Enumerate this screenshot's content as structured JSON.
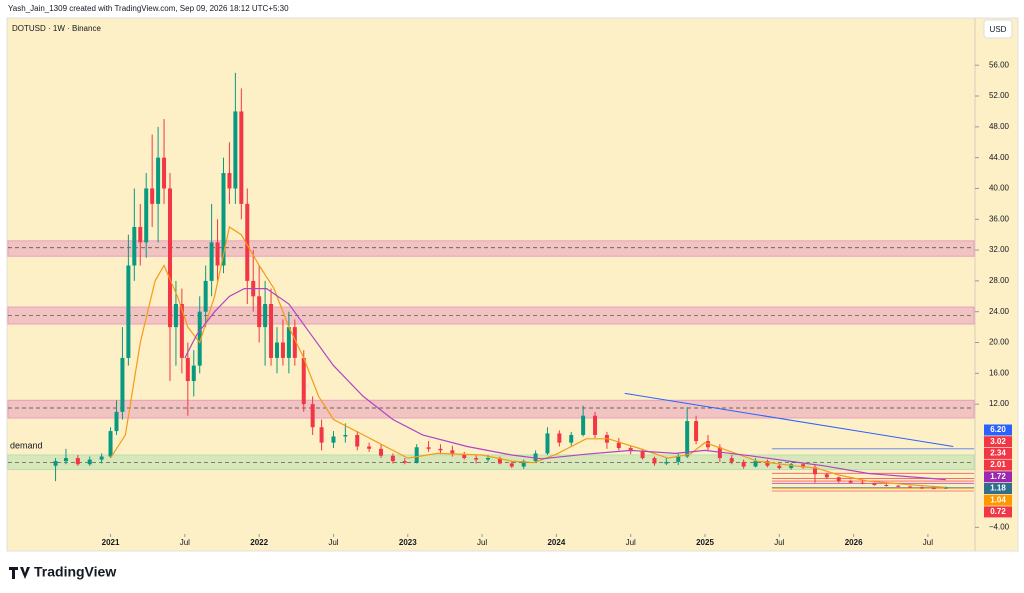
{
  "chart_data": {
    "type": "candlestick",
    "credit": "Yash_Jain_1309 created with TradingView.com, Sep 09, 2026 18:12 UTC+5:30",
    "title": "DOTUSD · 1W · Binance",
    "currency": "USD",
    "brand": "TradingView",
    "up_color": "#089981",
    "down_color": "#f23645",
    "xlim": [
      2020.31,
      2026.81
    ],
    "ylim": [
      -4.6,
      62
    ],
    "xticks": [
      {
        "value": 2021,
        "label": "2021"
      },
      {
        "value": 2021.5,
        "label": "Jul"
      },
      {
        "value": 2022,
        "label": "2022"
      },
      {
        "value": 2022.5,
        "label": "Jul"
      },
      {
        "value": 2023,
        "label": "2023"
      },
      {
        "value": 2023.5,
        "label": "Jul"
      },
      {
        "value": 2024,
        "label": "2024"
      },
      {
        "value": 2024.5,
        "label": "Jul"
      },
      {
        "value": 2025,
        "label": "2025"
      },
      {
        "value": 2025.5,
        "label": "Jul"
      },
      {
        "value": 2026,
        "label": "2026"
      },
      {
        "value": 2026.5,
        "label": "Jul"
      }
    ],
    "yticks": [
      {
        "value": 56,
        "label": "56.00"
      },
      {
        "value": 52,
        "label": "52.00"
      },
      {
        "value": 48,
        "label": "48.00"
      },
      {
        "value": 44,
        "label": "44.00"
      },
      {
        "value": 40,
        "label": "40.00"
      },
      {
        "value": 36,
        "label": "36.00"
      },
      {
        "value": 32,
        "label": "32.00"
      },
      {
        "value": 28,
        "label": "28.00"
      },
      {
        "value": 24,
        "label": "24.00"
      },
      {
        "value": 20,
        "label": "20.00"
      },
      {
        "value": 16,
        "label": "16.00"
      },
      {
        "value": 12,
        "label": "12.00"
      },
      {
        "value": -4,
        "label": "−4.00"
      }
    ],
    "candles": [
      [
        2020.63,
        4.0,
        5.0,
        2.0,
        4.6
      ],
      [
        2020.7,
        4.6,
        6.2,
        4.2,
        5.0
      ],
      [
        2020.78,
        5.0,
        5.4,
        4.0,
        4.2
      ],
      [
        2020.86,
        4.2,
        5.2,
        4.0,
        4.8
      ],
      [
        2020.94,
        4.8,
        5.6,
        4.3,
        5.2
      ],
      [
        2021.0,
        5.2,
        9.0,
        5.0,
        8.5
      ],
      [
        2021.04,
        8.5,
        12.5,
        8.0,
        11.0
      ],
      [
        2021.08,
        11.0,
        22,
        10,
        18
      ],
      [
        2021.12,
        18,
        34,
        17,
        30
      ],
      [
        2021.16,
        30,
        40,
        28,
        35
      ],
      [
        2021.2,
        35,
        38,
        30,
        33
      ],
      [
        2021.24,
        33,
        42,
        31,
        40
      ],
      [
        2021.28,
        40,
        47,
        35,
        38
      ],
      [
        2021.32,
        38,
        48,
        33,
        44
      ],
      [
        2021.36,
        44,
        49,
        38,
        40
      ],
      [
        2021.4,
        40,
        42,
        15,
        22
      ],
      [
        2021.44,
        22,
        28,
        17,
        25
      ],
      [
        2021.48,
        25,
        27,
        16,
        18
      ],
      [
        2021.52,
        18,
        20,
        10.5,
        15
      ],
      [
        2021.56,
        15,
        19,
        13,
        17
      ],
      [
        2021.6,
        17,
        26,
        16,
        24
      ],
      [
        2021.64,
        24,
        30,
        22,
        28
      ],
      [
        2021.68,
        28,
        38,
        26,
        33
      ],
      [
        2021.72,
        33,
        36,
        28,
        30
      ],
      [
        2021.76,
        30,
        44,
        29,
        42
      ],
      [
        2021.8,
        42,
        46,
        38,
        40
      ],
      [
        2021.84,
        40,
        55,
        38,
        50
      ],
      [
        2021.88,
        50,
        53,
        36,
        38
      ],
      [
        2021.92,
        38,
        40,
        25,
        28
      ],
      [
        2021.96,
        28,
        32,
        24,
        26
      ],
      [
        2022.0,
        26,
        30,
        20,
        22
      ],
      [
        2022.04,
        22,
        28,
        17,
        25
      ],
      [
        2022.08,
        25,
        27,
        17,
        18
      ],
      [
        2022.12,
        18,
        22,
        16,
        20
      ],
      [
        2022.16,
        20,
        23,
        17,
        18
      ],
      [
        2022.2,
        18,
        24,
        16,
        22
      ],
      [
        2022.24,
        22,
        23,
        17,
        18
      ],
      [
        2022.3,
        18,
        19,
        11,
        12
      ],
      [
        2022.36,
        12,
        13,
        8,
        9
      ],
      [
        2022.42,
        9,
        10,
        6,
        7
      ],
      [
        2022.5,
        7,
        8.5,
        6.3,
        7.8
      ],
      [
        2022.58,
        7.8,
        9.5,
        7,
        8
      ],
      [
        2022.66,
        8,
        8.5,
        6,
        6.5
      ],
      [
        2022.74,
        6.5,
        7,
        5.8,
        6.2
      ],
      [
        2022.82,
        6.2,
        6.8,
        5,
        5.3
      ],
      [
        2022.9,
        5.3,
        5.6,
        4.3,
        4.6
      ],
      [
        2022.98,
        4.6,
        5,
        4.2,
        4.4
      ],
      [
        2023.06,
        4.4,
        6.8,
        4.3,
        6.4
      ],
      [
        2023.14,
        6.4,
        7.2,
        5.8,
        6.2
      ],
      [
        2023.22,
        6.2,
        6.8,
        5.5,
        6.0
      ],
      [
        2023.3,
        6.0,
        6.6,
        5.2,
        5.5
      ],
      [
        2023.38,
        5.5,
        5.8,
        4.8,
        5.0
      ],
      [
        2023.46,
        5.0,
        5.4,
        4.3,
        4.8
      ],
      [
        2023.54,
        4.8,
        5.4,
        4.5,
        5.0
      ],
      [
        2023.62,
        5.0,
        5.2,
        4.2,
        4.3
      ],
      [
        2023.7,
        4.3,
        4.6,
        3.7,
        3.9
      ],
      [
        2023.78,
        3.9,
        4.8,
        3.6,
        4.6
      ],
      [
        2023.86,
        4.6,
        6.0,
        4.4,
        5.6
      ],
      [
        2023.94,
        5.6,
        9.0,
        5.4,
        8.2
      ],
      [
        2024.02,
        8.2,
        8.6,
        6.5,
        7.0
      ],
      [
        2024.1,
        7.0,
        8.4,
        6.6,
        8.0
      ],
      [
        2024.18,
        8.0,
        11.8,
        7.8,
        10.5
      ],
      [
        2024.26,
        10.5,
        11.0,
        7.6,
        8.0
      ],
      [
        2024.34,
        8.0,
        8.4,
        6.2,
        7.0
      ],
      [
        2024.42,
        7.0,
        7.6,
        6.0,
        6.3
      ],
      [
        2024.5,
        6.3,
        6.6,
        5.5,
        5.9
      ],
      [
        2024.58,
        5.9,
        6.2,
        4.8,
        5.0
      ],
      [
        2024.66,
        5.0,
        5.2,
        4.0,
        4.3
      ],
      [
        2024.74,
        4.3,
        5.0,
        4.1,
        4.5
      ],
      [
        2024.82,
        4.5,
        5.6,
        4.1,
        5.2
      ],
      [
        2024.88,
        5.2,
        11.6,
        5.0,
        9.8
      ],
      [
        2024.94,
        9.8,
        10.5,
        6.8,
        7.2
      ],
      [
        2025.02,
        7.2,
        8.0,
        6.0,
        6.4
      ],
      [
        2025.1,
        6.4,
        6.8,
        4.5,
        5.0
      ],
      [
        2025.18,
        5.0,
        5.4,
        4.2,
        4.5
      ],
      [
        2025.26,
        4.5,
        4.8,
        3.6,
        3.9
      ],
      [
        2025.34,
        3.9,
        5.0,
        3.8,
        4.6
      ],
      [
        2025.42,
        4.6,
        4.8,
        3.8,
        4.0
      ],
      [
        2025.5,
        4.0,
        4.4,
        3.5,
        3.7
      ],
      [
        2025.58,
        3.7,
        4.4,
        3.5,
        4.2
      ],
      [
        2025.66,
        4.2,
        4.4,
        3.6,
        3.8
      ],
      [
        2025.74,
        3.8,
        4.2,
        1.8,
        2.9
      ],
      [
        2025.82,
        2.9,
        3.1,
        2.3,
        2.5
      ],
      [
        2025.9,
        2.5,
        2.6,
        1.8,
        2.0
      ],
      [
        2025.98,
        2.0,
        2.2,
        1.7,
        1.8
      ],
      [
        2026.06,
        1.8,
        2.1,
        1.6,
        1.7
      ],
      [
        2026.14,
        1.7,
        1.8,
        1.4,
        1.5
      ],
      [
        2026.22,
        1.5,
        1.7,
        1.3,
        1.4
      ],
      [
        2026.3,
        1.4,
        1.5,
        1.2,
        1.3
      ],
      [
        2026.38,
        1.3,
        1.4,
        1.1,
        1.2
      ],
      [
        2026.46,
        1.2,
        1.3,
        1.0,
        1.1
      ],
      [
        2026.54,
        1.1,
        1.2,
        0.95,
        1.05
      ],
      [
        2026.62,
        1.05,
        1.3,
        1.0,
        1.18
      ]
    ],
    "series": [
      {
        "color": "#f59b16",
        "x": [
          2021.0,
          2021.1,
          2021.2,
          2021.3,
          2021.36,
          2021.45,
          2021.52,
          2021.6,
          2021.7,
          2021.8,
          2021.88,
          2022.0,
          2022.1,
          2022.2,
          2022.3,
          2022.4,
          2022.5,
          2022.7,
          2022.9,
          2023.0,
          2023.2,
          2023.5,
          2023.7,
          2023.85,
          2024.0,
          2024.2,
          2024.35,
          2024.55,
          2024.75,
          2024.9,
          2025.0,
          2025.15,
          2025.35,
          2025.6,
          2025.75,
          2025.9,
          2026.1,
          2026.4,
          2026.62
        ],
        "values": [
          5,
          8,
          20,
          28,
          30,
          26,
          22,
          20,
          26,
          35,
          34,
          30,
          27,
          22,
          18,
          13,
          10,
          8,
          6,
          5,
          5.6,
          5.4,
          4.6,
          4.4,
          5.5,
          7.5,
          7.5,
          6.3,
          5,
          5.5,
          7,
          6,
          4.6,
          4,
          3.7,
          2.8,
          2.0,
          1.5,
          1.2
        ]
      },
      {
        "color": "#b044c4",
        "x": [
          2021.5,
          2021.58,
          2021.7,
          2021.8,
          2021.9,
          2022.05,
          2022.2,
          2022.35,
          2022.5,
          2022.7,
          2022.9,
          2023.1,
          2023.4,
          2023.7,
          2023.9,
          2024.2,
          2024.5,
          2024.8,
          2025.0,
          2025.3,
          2025.6,
          2025.8,
          2026.1,
          2026.62
        ],
        "values": [
          18,
          21,
          24,
          26,
          27,
          27,
          25,
          21,
          17,
          13,
          10,
          8,
          6.5,
          5.4,
          4.9,
          5.5,
          6,
          5.6,
          6,
          5.3,
          4.5,
          4,
          3,
          2.2
        ]
      }
    ],
    "zones": [
      {
        "low": 31.2,
        "high": 33.2,
        "line": 32.3,
        "color": "#e8a0c0"
      },
      {
        "low": 22.4,
        "high": 24.6,
        "line": 23.5,
        "color": "#e8a0c0"
      },
      {
        "low": 10.2,
        "high": 12.5,
        "line": 11.5,
        "color": "#e8a0c0"
      },
      {
        "low": 3.5,
        "high": 5.4,
        "line": 4.4,
        "color": "#b8e0b0",
        "label": "demand"
      }
    ],
    "trendline": {
      "x": [
        2024.46,
        2026.67
      ],
      "values": [
        13.4,
        6.5
      ],
      "color": "#2962ff"
    },
    "price_labels": [
      {
        "value": 6.2,
        "label": "6.20",
        "color": "#2962ff"
      },
      {
        "value": 3.02,
        "label": "3.02",
        "color": "#f23645"
      },
      {
        "value": 2.34,
        "label": "2.34",
        "color": "#f23645"
      },
      {
        "value": 2.01,
        "label": "2.01",
        "color": "#f23645"
      },
      {
        "value": 1.72,
        "label": "1.72",
        "color": "#9c27b0"
      },
      {
        "value": 1.18,
        "label": "1.18",
        "color": "#2e6f8e"
      },
      {
        "value": 1.04,
        "label": "1.04",
        "color": "#ff9800"
      },
      {
        "value": 0.72,
        "label": "0.72",
        "color": "#f23645"
      }
    ]
  }
}
